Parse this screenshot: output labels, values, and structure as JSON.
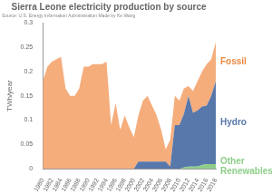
{
  "chart_data": {
    "type": "area",
    "title": "Sierra Leone electricity production by source",
    "subtitle": "Source: U.S. Energy Information Administration Made by Ke Wang",
    "y_label": "TWh/year",
    "stacked": true,
    "grid": false,
    "categories": [
      "1980",
      null,
      "1982",
      null,
      "1984",
      null,
      "1986",
      null,
      "1988",
      null,
      "1990",
      null,
      "1992",
      null,
      "1994",
      null,
      "1996",
      null,
      "1998",
      null,
      "2000",
      null,
      "2002",
      null,
      "2004",
      null,
      "2006",
      null,
      "2008",
      null,
      "2010",
      null,
      "2012",
      null,
      "2014",
      null,
      "2016",
      null,
      "2018"
    ],
    "series": [
      {
        "name": "Other Renewables",
        "color": "#8fce8a",
        "values": [
          0,
          0,
          0,
          0,
          0,
          0,
          0,
          0,
          0,
          0,
          0,
          0,
          0,
          0,
          0,
          0,
          0,
          0,
          0,
          0,
          0,
          0,
          0,
          0,
          0,
          0,
          0,
          0,
          0,
          0,
          0,
          0.003,
          0.005,
          0.005,
          0.005,
          0.008,
          0.01,
          0.01,
          0.01
        ]
      },
      {
        "name": "Hydro",
        "color": "#5877ab",
        "values": [
          0,
          0,
          0,
          0,
          0,
          0,
          0,
          0,
          0,
          0,
          0,
          0,
          0,
          0,
          0,
          0,
          0,
          0,
          0,
          0,
          0,
          0.015,
          0.015,
          0.015,
          0.015,
          0.015,
          0.015,
          0.015,
          0.005,
          0.09,
          0.09,
          0.11,
          0.145,
          0.11,
          0.115,
          0.12,
          0.12,
          0.14,
          0.17
        ]
      },
      {
        "name": "Fossil",
        "color": "#f5ad7c",
        "values": [
          0.18,
          0.21,
          0.22,
          0.225,
          0.23,
          0.165,
          0.15,
          0.15,
          0.165,
          0.21,
          0.21,
          0.215,
          0.215,
          0.215,
          0.22,
          0.09,
          0.135,
          0.08,
          0.11,
          0.085,
          0.065,
          0.095,
          0.125,
          0.135,
          0.115,
          0.095,
          0.065,
          0.025,
          0.055,
          0.06,
          0.05,
          0.052,
          0.02,
          0.045,
          0.06,
          0.072,
          0.085,
          0.075,
          0.08
        ]
      }
    ],
    "ylim": [
      0,
      0.3
    ],
    "yticks": [
      0,
      0.05,
      0.1,
      0.15,
      0.2,
      0.25,
      0.3
    ]
  }
}
